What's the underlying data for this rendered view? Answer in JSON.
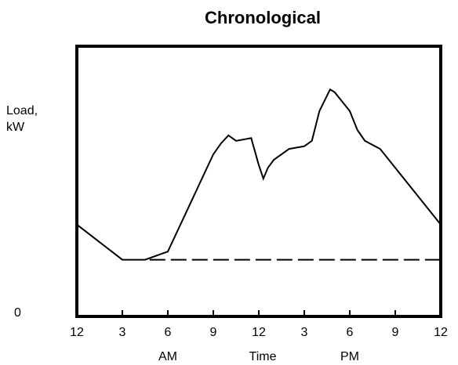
{
  "chart_data": {
    "type": "line",
    "title": "Chronological",
    "xlabel": "Time",
    "ylabel_lines": [
      "Load,",
      "kW"
    ],
    "y_zero_label": "0",
    "x_ticks": [
      {
        "hour": 0,
        "label": "12"
      },
      {
        "hour": 3,
        "label": "3"
      },
      {
        "hour": 6,
        "label": "6"
      },
      {
        "hour": 9,
        "label": "9"
      },
      {
        "hour": 12,
        "label": "12"
      },
      {
        "hour": 15,
        "label": "3"
      },
      {
        "hour": 18,
        "label": "6"
      },
      {
        "hour": 21,
        "label": "9"
      },
      {
        "hour": 24,
        "label": "12"
      }
    ],
    "period_labels": [
      {
        "hour": 6,
        "label": "AM"
      },
      {
        "hour": 18,
        "label": "PM"
      }
    ],
    "xlim": [
      0,
      24
    ],
    "ylim": [
      0,
      100
    ],
    "series": [
      {
        "style": "solid",
        "x": [
          0,
          3,
          4.5,
          6,
          9,
          9.5,
          10,
          10.5,
          11.5,
          12,
          12.3,
          12.6,
          13,
          14,
          15,
          15.5,
          16,
          16.7,
          17,
          18,
          18.5,
          19,
          20,
          24
        ],
        "y": [
          34,
          21,
          21,
          24,
          60,
          64,
          67,
          65,
          66,
          56,
          51,
          55,
          58,
          62,
          63,
          65,
          76,
          84,
          83,
          76,
          69,
          65,
          62,
          34
        ]
      },
      {
        "style": "dashed",
        "x": [
          4.8,
          24
        ],
        "y": [
          21,
          21
        ]
      }
    ],
    "grid": false,
    "legend": "none"
  }
}
